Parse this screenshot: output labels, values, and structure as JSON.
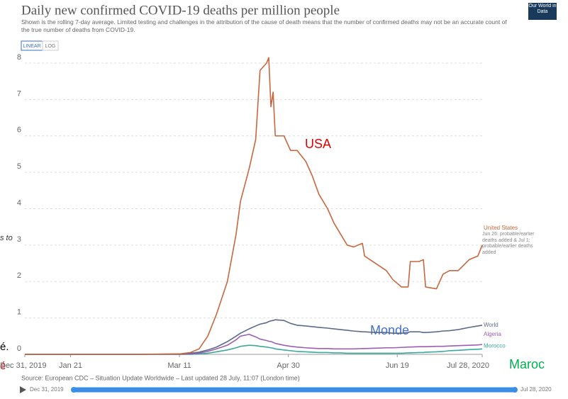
{
  "chart_data": {
    "type": "line",
    "title": "Daily new confirmed COVID-19 deaths per million people",
    "subtitle": "Shown is the rolling 7-day average. Limited testing and challenges in the attribution of the cause of death means that the number of confirmed deaths may not be an accurate count of the true number of deaths from COVID-19.",
    "logo": "Our World in Data",
    "scale_buttons": [
      "LINEAR",
      "LOG"
    ],
    "source": "Source: European CDC – Situation Update Worldwide – Last updated 28 July, 11:07 (London time)",
    "note": "Jun 26: probable/earlier deaths added & Jul 1: probable/earlier deaths added",
    "annotations": [
      {
        "text": "USA",
        "color": "#e00000"
      },
      {
        "text": "Monde",
        "color": "#4472c4"
      },
      {
        "text": "Maroc",
        "color": "#00b050"
      }
    ],
    "left_fragments": [
      "s to",
      "é.",
      "é"
    ],
    "grid": true,
    "xlim": [
      0,
      210
    ],
    "xticks": [
      {
        "value": 0,
        "label": "Dec 31, 2019"
      },
      {
        "value": 21,
        "label": "Jan 21"
      },
      {
        "value": 71,
        "label": "Mar 11"
      },
      {
        "value": 121,
        "label": "Apr 30"
      },
      {
        "value": 171,
        "label": "Jun 19"
      },
      {
        "value": 210,
        "label": "Jul 28, 2020"
      }
    ],
    "ylim": [
      0,
      8
    ],
    "yticks": [
      0,
      1,
      2,
      3,
      4,
      5,
      6,
      7,
      8
    ],
    "x": [
      0,
      21,
      50,
      71,
      76,
      80,
      84,
      88,
      93,
      97,
      99,
      103,
      106,
      108,
      111,
      112,
      113,
      114,
      115,
      119,
      122,
      125,
      129,
      132,
      135,
      139,
      142,
      145,
      148,
      151,
      155,
      156,
      161,
      166,
      169,
      173,
      176,
      177,
      181,
      183,
      184,
      189,
      192,
      195,
      199,
      204,
      208,
      210
    ],
    "series": [
      {
        "name": "United States",
        "color": "#c8673f",
        "values": [
          0,
          0,
          0,
          0.01,
          0.05,
          0.15,
          0.5,
          1.1,
          2.0,
          3.3,
          4.2,
          5.1,
          5.9,
          7.8,
          8.0,
          8.15,
          6.8,
          7.2,
          6.0,
          6.0,
          5.6,
          5.6,
          5.3,
          4.9,
          4.4,
          4.0,
          3.6,
          3.3,
          3.0,
          2.95,
          3.05,
          2.7,
          2.5,
          2.3,
          2.05,
          1.85,
          1.85,
          2.55,
          2.55,
          2.6,
          1.85,
          1.8,
          2.2,
          2.3,
          2.3,
          2.6,
          2.7,
          3.0
        ]
      },
      {
        "name": "World",
        "color": "#5c6a8a",
        "values": [
          0,
          0,
          0,
          0.01,
          0.03,
          0.06,
          0.12,
          0.2,
          0.35,
          0.5,
          0.58,
          0.7,
          0.78,
          0.83,
          0.87,
          0.9,
          0.92,
          0.93,
          0.95,
          0.93,
          0.85,
          0.8,
          0.78,
          0.76,
          0.74,
          0.72,
          0.7,
          0.68,
          0.66,
          0.64,
          0.62,
          0.62,
          0.6,
          0.6,
          0.58,
          0.58,
          0.6,
          0.62,
          0.62,
          0.6,
          0.6,
          0.62,
          0.64,
          0.65,
          0.68,
          0.74,
          0.78,
          0.8
        ]
      },
      {
        "name": "Algeria",
        "color": "#9b5fb3",
        "values": [
          0,
          0,
          0,
          0,
          0.01,
          0.03,
          0.08,
          0.15,
          0.25,
          0.4,
          0.5,
          0.55,
          0.48,
          0.42,
          0.38,
          0.36,
          0.35,
          0.33,
          0.3,
          0.25,
          0.22,
          0.2,
          0.18,
          0.17,
          0.16,
          0.16,
          0.15,
          0.15,
          0.15,
          0.15,
          0.16,
          0.16,
          0.17,
          0.18,
          0.18,
          0.19,
          0.2,
          0.2,
          0.21,
          0.21,
          0.21,
          0.22,
          0.22,
          0.23,
          0.24,
          0.25,
          0.26,
          0.27
        ]
      },
      {
        "name": "Morocco",
        "color": "#3aa89c",
        "values": [
          0,
          0,
          0,
          0,
          0,
          0.01,
          0.03,
          0.07,
          0.12,
          0.18,
          0.22,
          0.25,
          0.24,
          0.22,
          0.2,
          0.19,
          0.18,
          0.17,
          0.15,
          0.12,
          0.1,
          0.08,
          0.07,
          0.06,
          0.05,
          0.05,
          0.04,
          0.04,
          0.03,
          0.03,
          0.03,
          0.03,
          0.03,
          0.03,
          0.03,
          0.03,
          0.04,
          0.04,
          0.05,
          0.05,
          0.06,
          0.07,
          0.08,
          0.1,
          0.11,
          0.13,
          0.14,
          0.15
        ]
      }
    ]
  }
}
